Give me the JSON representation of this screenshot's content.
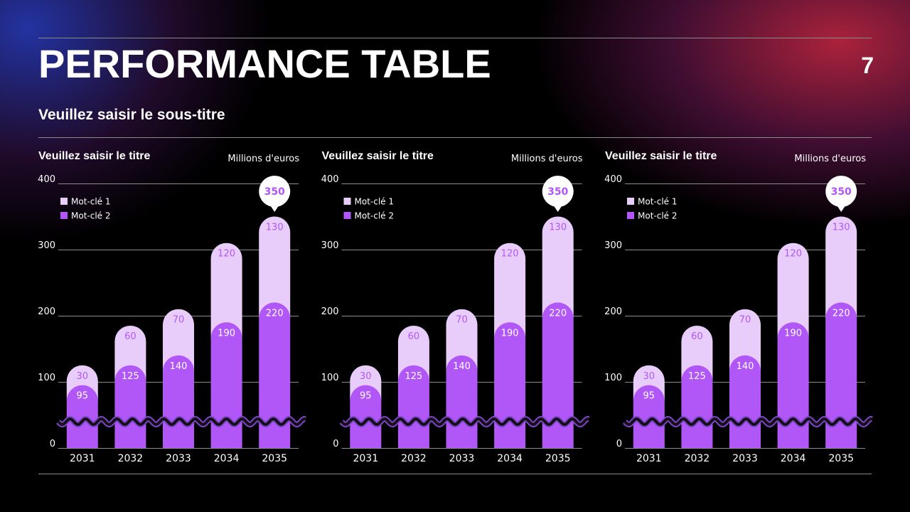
{
  "title": "PERFORMANCE TABLE",
  "page_number": "7",
  "subtitle": "Veuillez saisir le sous-titre",
  "chart_data": [
    {
      "type": "bar",
      "stacked": true,
      "title": "Veuillez saisir le titre",
      "y_label": "Millions d'euros",
      "categories": [
        "2031",
        "2032",
        "2033",
        "2034",
        "2035"
      ],
      "series": [
        {
          "name": "Mot-clé 1",
          "color": "#e8cdfa",
          "values": [
            30,
            60,
            70,
            120,
            130
          ]
        },
        {
          "name": "Mot-clé 2",
          "color": "#b157f7",
          "values": [
            95,
            125,
            140,
            190,
            220
          ]
        }
      ],
      "ylim": [
        0,
        400
      ],
      "yticks": [
        0,
        100,
        200,
        300,
        400
      ],
      "grid": true,
      "callout": {
        "category": "2035",
        "value": 350
      }
    },
    {
      "type": "bar",
      "stacked": true,
      "title": "Veuillez saisir le titre",
      "y_label": "Millions d'euros",
      "categories": [
        "2031",
        "2032",
        "2033",
        "2034",
        "2035"
      ],
      "series": [
        {
          "name": "Mot-clé 1",
          "color": "#e8cdfa",
          "values": [
            30,
            60,
            70,
            120,
            130
          ]
        },
        {
          "name": "Mot-clé 2",
          "color": "#b157f7",
          "values": [
            95,
            125,
            140,
            190,
            220
          ]
        }
      ],
      "ylim": [
        0,
        400
      ],
      "yticks": [
        0,
        100,
        200,
        300,
        400
      ],
      "grid": true,
      "callout": {
        "category": "2035",
        "value": 350
      }
    },
    {
      "type": "bar",
      "stacked": true,
      "title": "Veuillez saisir le titre",
      "y_label": "Millions d'euros",
      "categories": [
        "2031",
        "2032",
        "2033",
        "2034",
        "2035"
      ],
      "series": [
        {
          "name": "Mot-clé 1",
          "color": "#e8cdfa",
          "values": [
            30,
            60,
            70,
            120,
            130
          ]
        },
        {
          "name": "Mot-clé 2",
          "color": "#b157f7",
          "values": [
            95,
            125,
            140,
            190,
            220
          ]
        }
      ],
      "ylim": [
        0,
        400
      ],
      "yticks": [
        0,
        100,
        200,
        300,
        400
      ],
      "grid": true,
      "callout": {
        "category": "2035",
        "value": 350
      }
    }
  ]
}
